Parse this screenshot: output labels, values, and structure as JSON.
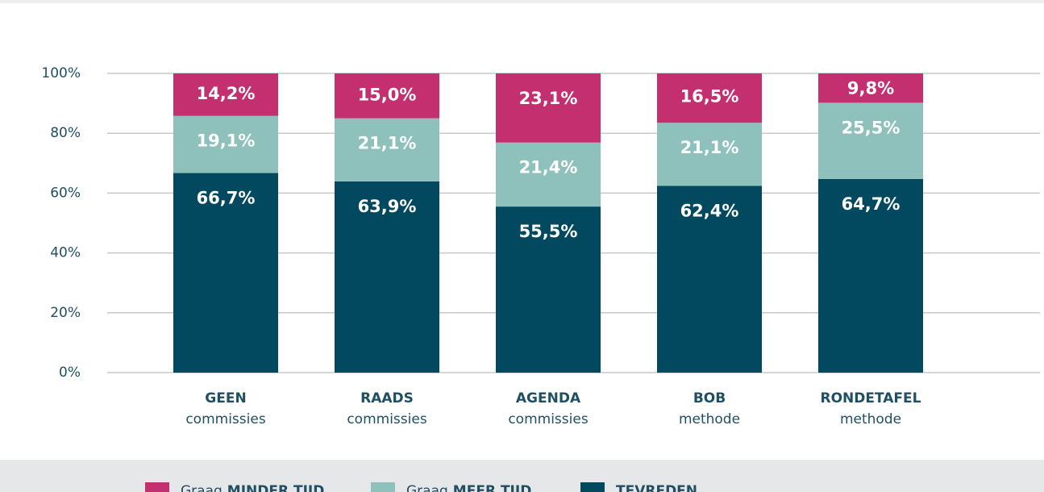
{
  "chart_data": {
    "type": "stacked_bar",
    "categories": [
      {
        "label": "GEEN",
        "sublabel": "commissies"
      },
      {
        "label": "RAADS",
        "sublabel": "commissies"
      },
      {
        "label": "AGENDA",
        "sublabel": "commissies"
      },
      {
        "label": "BOB",
        "sublabel": "methode"
      },
      {
        "label": "RONDETAFEL",
        "sublabel": "methode"
      }
    ],
    "series": [
      {
        "name": {
          "emphasis": "TEVREDEN"
        },
        "color": "#02495f",
        "values": [
          66.7,
          63.9,
          55.5,
          62.4,
          64.7
        ],
        "value_labels": [
          "66,7%",
          "63,9%",
          "55,5%",
          "62,4%",
          "64,7%"
        ]
      },
      {
        "name": {
          "prefix": "Graag",
          "emphasis": "MEER TIJD"
        },
        "color": "#8ec1bb",
        "values": [
          19.1,
          21.1,
          21.4,
          21.1,
          25.5
        ],
        "value_labels": [
          "19,1%",
          "21,1%",
          "21,4%",
          "21,1%",
          "25,5%"
        ]
      },
      {
        "name": {
          "prefix": "Graag",
          "emphasis": "MINDER TIJD"
        },
        "color": "#c42f6f",
        "values": [
          14.2,
          15.0,
          23.1,
          16.5,
          9.8
        ],
        "value_labels": [
          "14,2%",
          "15,0%",
          "23,1%",
          "16,5%",
          "9,8%"
        ]
      }
    ],
    "ylim": [
      0,
      100
    ],
    "yticks": [
      {
        "value": 0,
        "label": "0%"
      },
      {
        "value": 20,
        "label": "20%"
      },
      {
        "value": 40,
        "label": "40%"
      },
      {
        "value": 60,
        "label": "60%"
      },
      {
        "value": 80,
        "label": "80%"
      },
      {
        "value": 100,
        "label": "100%"
      }
    ],
    "grid": true
  }
}
